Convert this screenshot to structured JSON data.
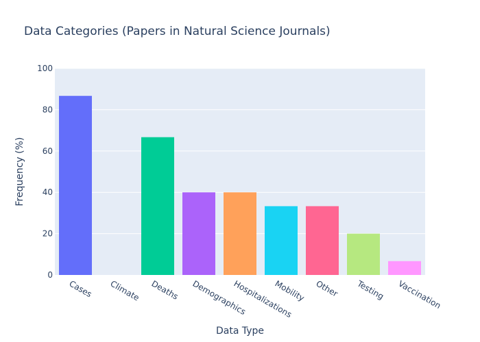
{
  "colors": {
    "plot_bg": "#e5ecf6",
    "grid": "#ffffff",
    "text": "#2a3f5f"
  },
  "chart_data": {
    "type": "bar",
    "title": "Data Categories (Papers in Natural Science Journals)",
    "xlabel": "Data Type",
    "ylabel": "Frequency (%)",
    "ylim": [
      0,
      100
    ],
    "yticks": [
      0,
      20,
      40,
      60,
      80,
      100
    ],
    "grid": true,
    "categories": [
      "Cases",
      "Climate",
      "Deaths",
      "Demographics",
      "Hospitalizations",
      "Mobility",
      "Other",
      "Testing",
      "Vaccination"
    ],
    "values": [
      86.7,
      0,
      66.7,
      40,
      40,
      33.3,
      33.3,
      20,
      6.7
    ],
    "bar_colors": [
      "#636efa",
      "#EF553B",
      "#00cc96",
      "#ab63fa",
      "#FFA15A",
      "#19d3f3",
      "#FF6692",
      "#B6E880",
      "#FF97FF"
    ]
  }
}
